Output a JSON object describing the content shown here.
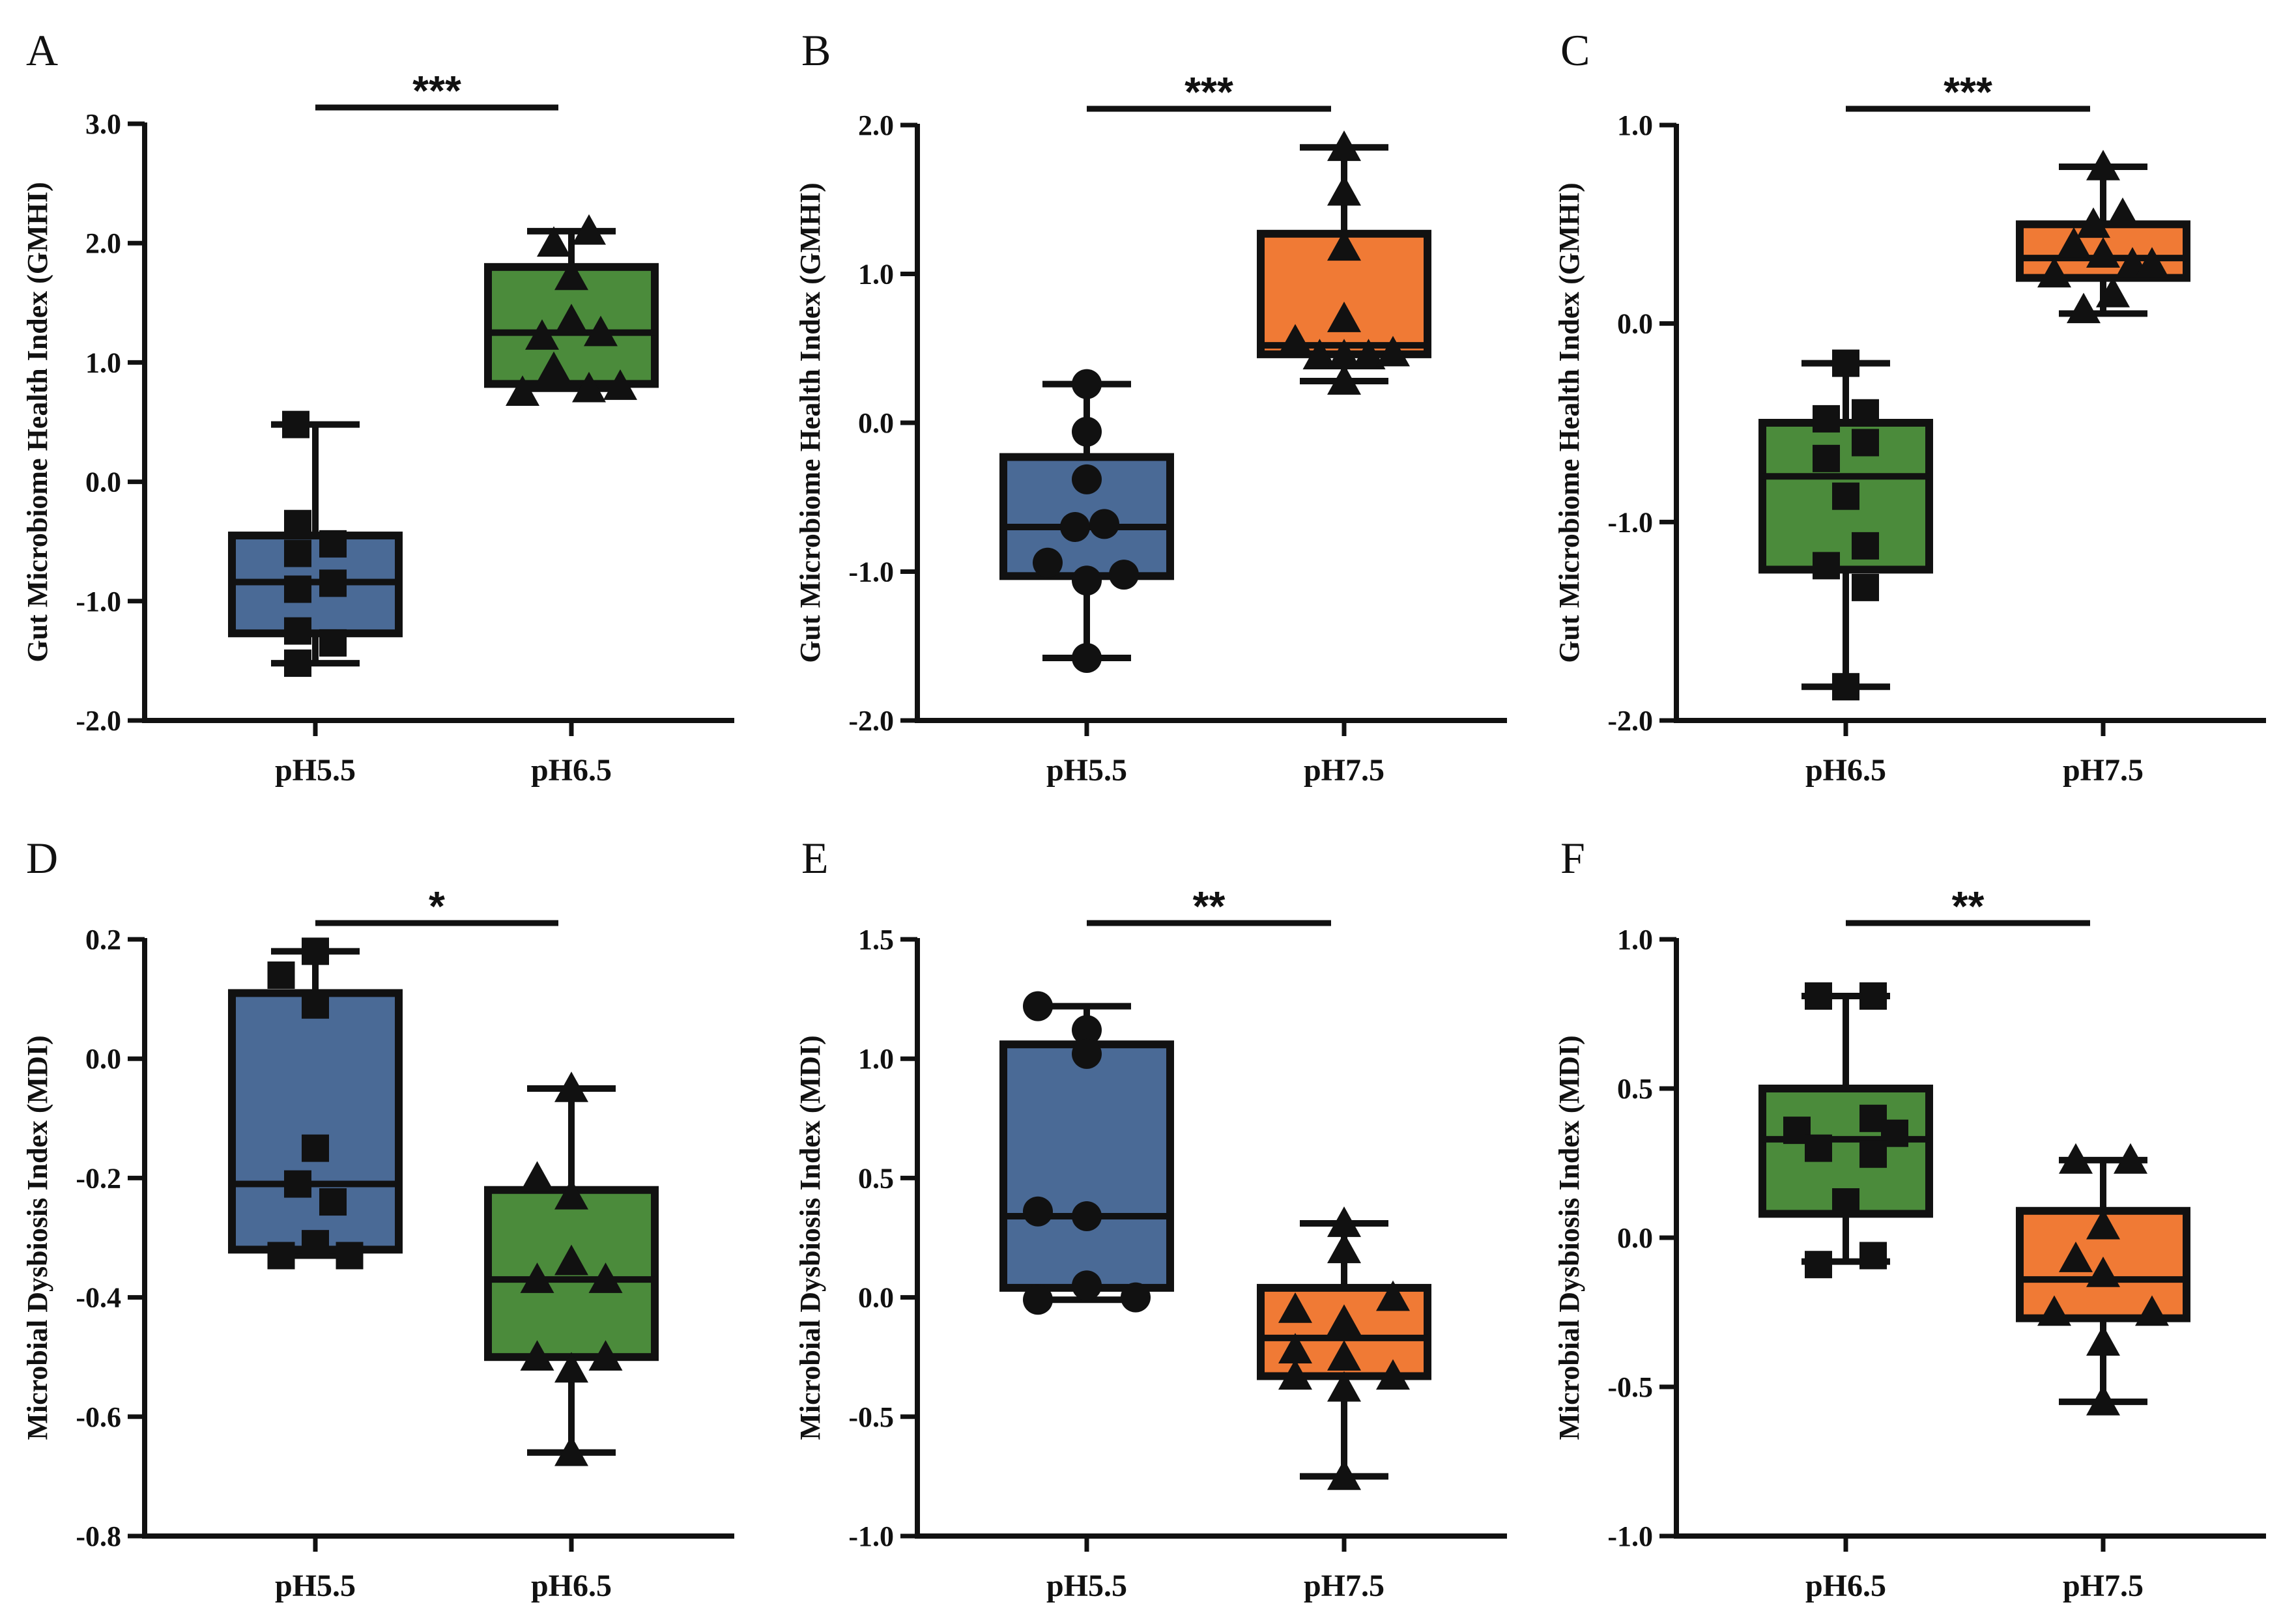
{
  "colors": {
    "blue": "#4a6a96",
    "green": "#4b8b3b",
    "orange": "#f07a35",
    "ink": "#111111"
  },
  "chart_data": [
    {
      "type": "box",
      "id": "A",
      "letter": "A",
      "ylabel": "Gut Microbiome Health Index (GMHI)",
      "ylim": [
        -2.0,
        3.0
      ],
      "yticks": [
        -2.0,
        -1.0,
        0.0,
        1.0,
        2.0,
        3.0
      ],
      "ytick_labels": [
        "-2.0",
        "-1.0",
        "0.0",
        "1.0",
        "2.0",
        "3.0"
      ],
      "significance": "***",
      "groups": [
        {
          "label": "pH5.5",
          "color": "blue",
          "marker": "square",
          "whisker_low": -1.52,
          "q1": -1.27,
          "median": -0.84,
          "q3": -0.45,
          "whisker_high": 0.48,
          "points": [
            [
              -0.2,
              0.48
            ],
            [
              -0.18,
              -0.35
            ],
            [
              0.18,
              -0.52
            ],
            [
              -0.18,
              -0.6
            ],
            [
              -0.18,
              -0.9
            ],
            [
              0.18,
              -0.85
            ],
            [
              -0.18,
              -1.25
            ],
            [
              0.18,
              -1.35
            ],
            [
              -0.18,
              -1.52
            ]
          ]
        },
        {
          "label": "pH6.5",
          "color": "green",
          "marker": "triangle",
          "whisker_low": 0.78,
          "q1": 0.82,
          "median": 1.25,
          "q3": 1.8,
          "whisker_high": 2.1,
          "points": [
            [
              0.18,
              2.1
            ],
            [
              -0.18,
              2.0
            ],
            [
              0.0,
              1.72
            ],
            [
              -0.3,
              1.22
            ],
            [
              0.0,
              1.35
            ],
            [
              0.3,
              1.25
            ],
            [
              -0.18,
              0.95
            ],
            [
              -0.5,
              0.75
            ],
            [
              0.18,
              0.78
            ],
            [
              0.5,
              0.8
            ]
          ]
        }
      ]
    },
    {
      "type": "box",
      "id": "B",
      "letter": "B",
      "ylabel": "Gut Microbiome Health Index (GMHI)",
      "ylim": [
        -2.0,
        2.0
      ],
      "yticks": [
        -2.0,
        -1.0,
        0.0,
        1.0,
        2.0
      ],
      "ytick_labels": [
        "-2.0",
        "-1.0",
        "0.0",
        "1.0",
        "2.0"
      ],
      "significance": "***",
      "groups": [
        {
          "label": "pH5.5",
          "color": "blue",
          "marker": "circle",
          "whisker_low": -1.58,
          "q1": -1.03,
          "median": -0.7,
          "q3": -0.23,
          "whisker_high": 0.26,
          "points": [
            [
              0.0,
              0.26
            ],
            [
              0.0,
              -0.06
            ],
            [
              0.0,
              -0.38
            ],
            [
              -0.12,
              -0.7
            ],
            [
              0.18,
              -0.68
            ],
            [
              -0.4,
              -0.94
            ],
            [
              0.0,
              -1.06
            ],
            [
              0.38,
              -1.02
            ],
            [
              0.0,
              -1.58
            ]
          ]
        },
        {
          "label": "pH7.5",
          "color": "orange",
          "marker": "triangle",
          "whisker_low": 0.28,
          "q1": 0.46,
          "median": 0.52,
          "q3": 1.27,
          "whisker_high": 1.85,
          "points": [
            [
              0.0,
              1.85
            ],
            [
              0.0,
              1.55
            ],
            [
              0.0,
              1.18
            ],
            [
              0.0,
              0.7
            ],
            [
              -0.5,
              0.55
            ],
            [
              -0.25,
              0.45
            ],
            [
              0.0,
              0.45
            ],
            [
              0.25,
              0.45
            ],
            [
              0.5,
              0.47
            ],
            [
              0.0,
              0.28
            ]
          ]
        }
      ]
    },
    {
      "type": "box",
      "id": "C",
      "letter": "C",
      "ylabel": "Gut Microbiome Health Index (GMHI)",
      "ylim": [
        -2.0,
        1.0
      ],
      "yticks": [
        -2.0,
        -1.0,
        0.0,
        1.0
      ],
      "ytick_labels": [
        "-2.0",
        "-1.0",
        "0.0",
        "1.0"
      ],
      "significance": "***",
      "groups": [
        {
          "label": "pH6.5",
          "color": "green",
          "marker": "square",
          "whisker_low": -1.83,
          "q1": -1.24,
          "median": -0.77,
          "q3": -0.5,
          "whisker_high": -0.2,
          "points": [
            [
              0.0,
              -0.2
            ],
            [
              -0.2,
              -0.48
            ],
            [
              0.2,
              -0.45
            ],
            [
              0.2,
              -0.6
            ],
            [
              -0.2,
              -0.68
            ],
            [
              0.0,
              -0.87
            ],
            [
              0.2,
              -1.12
            ],
            [
              -0.2,
              -1.22
            ],
            [
              0.2,
              -1.33
            ],
            [
              0.0,
              -1.83
            ]
          ]
        },
        {
          "label": "pH7.5",
          "color": "orange",
          "marker": "triangle",
          "whisker_low": 0.05,
          "q1": 0.23,
          "median": 0.33,
          "q3": 0.5,
          "whisker_high": 0.79,
          "points": [
            [
              0.0,
              0.79
            ],
            [
              0.2,
              0.55
            ],
            [
              -0.1,
              0.5
            ],
            [
              -0.3,
              0.4
            ],
            [
              0.0,
              0.35
            ],
            [
              0.3,
              0.3
            ],
            [
              -0.5,
              0.25
            ],
            [
              0.5,
              0.3
            ],
            [
              0.1,
              0.15
            ],
            [
              -0.2,
              0.07
            ]
          ]
        }
      ]
    },
    {
      "type": "box",
      "id": "D",
      "letter": "D",
      "ylabel": "Microbial Dysbiosis Index (MDI)",
      "ylim": [
        -0.8,
        0.2
      ],
      "yticks": [
        -0.8,
        -0.6,
        -0.4,
        -0.2,
        0.0,
        0.2
      ],
      "ytick_labels": [
        "-0.8",
        "-0.6",
        "-0.4",
        "-0.2",
        "0.0",
        "0.2"
      ],
      "significance": "*",
      "groups": [
        {
          "label": "pH5.5",
          "color": "blue",
          "marker": "square",
          "whisker_low": -0.33,
          "q1": -0.32,
          "median": -0.21,
          "q3": 0.11,
          "whisker_high": 0.18,
          "points": [
            [
              0.0,
              0.18
            ],
            [
              -0.35,
              0.14
            ],
            [
              0.0,
              0.09
            ],
            [
              0.0,
              -0.15
            ],
            [
              -0.18,
              -0.21
            ],
            [
              0.18,
              -0.24
            ],
            [
              0.0,
              -0.31
            ],
            [
              -0.35,
              -0.33
            ],
            [
              0.35,
              -0.33
            ]
          ]
        },
        {
          "label": "pH6.5",
          "color": "green",
          "marker": "triangle",
          "whisker_low": -0.66,
          "q1": -0.5,
          "median": -0.37,
          "q3": -0.22,
          "whisker_high": -0.05,
          "points": [
            [
              0.0,
              -0.05
            ],
            [
              -0.35,
              -0.2
            ],
            [
              0.0,
              -0.23
            ],
            [
              0.0,
              -0.34
            ],
            [
              -0.35,
              -0.37
            ],
            [
              0.35,
              -0.37
            ],
            [
              -0.35,
              -0.5
            ],
            [
              0.0,
              -0.52
            ],
            [
              0.35,
              -0.5
            ],
            [
              0.0,
              -0.66
            ]
          ]
        }
      ]
    },
    {
      "type": "box",
      "id": "E",
      "letter": "E",
      "ylabel": "Microbial Dysbiosis Index (MDI)",
      "ylim": [
        -1.0,
        1.5
      ],
      "yticks": [
        -1.0,
        -0.5,
        0.0,
        0.5,
        1.0,
        1.5
      ],
      "ytick_labels": [
        "-1.0",
        "-0.5",
        "0.0",
        "0.5",
        "1.0",
        "1.5"
      ],
      "significance": "**",
      "groups": [
        {
          "label": "pH5.5",
          "color": "blue",
          "marker": "circle",
          "whisker_low": -0.01,
          "q1": 0.04,
          "median": 0.34,
          "q3": 1.06,
          "whisker_high": 1.22,
          "points": [
            [
              -0.5,
              1.22
            ],
            [
              0.0,
              1.12
            ],
            [
              0.0,
              1.02
            ],
            [
              -0.5,
              0.36
            ],
            [
              0.0,
              0.34
            ],
            [
              0.0,
              0.05
            ],
            [
              -0.5,
              -0.01
            ],
            [
              0.5,
              0.0
            ]
          ]
        },
        {
          "label": "pH7.5",
          "color": "orange",
          "marker": "triangle",
          "whisker_low": -0.75,
          "q1": -0.33,
          "median": -0.17,
          "q3": 0.04,
          "whisker_high": 0.31,
          "points": [
            [
              0.0,
              0.31
            ],
            [
              0.0,
              0.2
            ],
            [
              0.5,
              0.0
            ],
            [
              -0.5,
              -0.05
            ],
            [
              0.0,
              -0.1
            ],
            [
              -0.5,
              -0.22
            ],
            [
              0.0,
              -0.25
            ],
            [
              -0.5,
              -0.33
            ],
            [
              0.5,
              -0.33
            ],
            [
              0.0,
              -0.38
            ],
            [
              0.0,
              -0.75
            ]
          ]
        }
      ]
    },
    {
      "type": "box",
      "id": "F",
      "letter": "F",
      "ylabel": "Microbial Dysbiosis Index (MDI)",
      "ylim": [
        -1.0,
        1.0
      ],
      "yticks": [
        -1.0,
        -0.5,
        0.0,
        0.5,
        1.0
      ],
      "ytick_labels": [
        "-1.0",
        "-0.5",
        "0.0",
        "0.5",
        "1.0"
      ],
      "significance": "**",
      "groups": [
        {
          "label": "pH6.5",
          "color": "green",
          "marker": "square",
          "whisker_low": -0.08,
          "q1": 0.08,
          "median": 0.33,
          "q3": 0.5,
          "whisker_high": 0.81,
          "points": [
            [
              -0.28,
              0.81
            ],
            [
              0.28,
              0.81
            ],
            [
              0.28,
              0.4
            ],
            [
              -0.5,
              0.36
            ],
            [
              0.5,
              0.35
            ],
            [
              -0.28,
              0.3
            ],
            [
              0.28,
              0.28
            ],
            [
              0.0,
              0.12
            ],
            [
              -0.28,
              -0.09
            ],
            [
              0.28,
              -0.06
            ]
          ]
        },
        {
          "label": "pH7.5",
          "color": "orange",
          "marker": "triangle",
          "whisker_low": -0.55,
          "q1": -0.27,
          "median": -0.14,
          "q3": 0.09,
          "whisker_high": 0.26,
          "points": [
            [
              -0.28,
              0.26
            ],
            [
              0.28,
              0.26
            ],
            [
              0.0,
              0.04
            ],
            [
              -0.28,
              -0.07
            ],
            [
              0.0,
              -0.12
            ],
            [
              -0.5,
              -0.25
            ],
            [
              0.5,
              -0.25
            ],
            [
              0.0,
              -0.35
            ],
            [
              0.0,
              -0.55
            ]
          ]
        }
      ]
    }
  ]
}
